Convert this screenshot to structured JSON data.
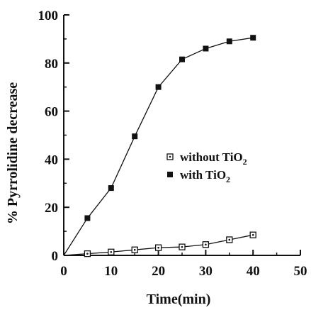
{
  "chart_data": {
    "type": "line",
    "xlabel": "Time(min)",
    "ylabel": "% Pyrrolidine decrease",
    "xlim": [
      0,
      50
    ],
    "ylim": [
      0,
      100
    ],
    "x_ticks": [
      0,
      10,
      20,
      30,
      40,
      50
    ],
    "y_ticks": [
      0,
      20,
      40,
      60,
      80,
      100
    ],
    "x_tick_labels": [
      "0",
      "10",
      "20",
      "30",
      "40",
      "50"
    ],
    "y_tick_labels": [
      "0",
      "20",
      "40",
      "60",
      "80",
      "100"
    ],
    "grid": false,
    "legend_position": "center-right",
    "series": [
      {
        "name": "without TiO2",
        "legend_label": "without TiO",
        "legend_sub": "2",
        "marker": "open-square-dot",
        "color": "#111111",
        "x": [
          0,
          5,
          10,
          15,
          20,
          25,
          30,
          35,
          40
        ],
        "y": [
          0,
          0.7,
          1.4,
          2.3,
          3.2,
          3.5,
          4.5,
          6.5,
          8.5
        ]
      },
      {
        "name": "with TiO2",
        "legend_label": "with TiO",
        "legend_sub": "2",
        "marker": "filled-square",
        "color": "#111111",
        "x": [
          0,
          5,
          10,
          15,
          20,
          25,
          30,
          35,
          40
        ],
        "y": [
          0,
          15.5,
          28,
          49.5,
          70,
          81.5,
          86,
          89,
          90.5
        ]
      }
    ]
  }
}
